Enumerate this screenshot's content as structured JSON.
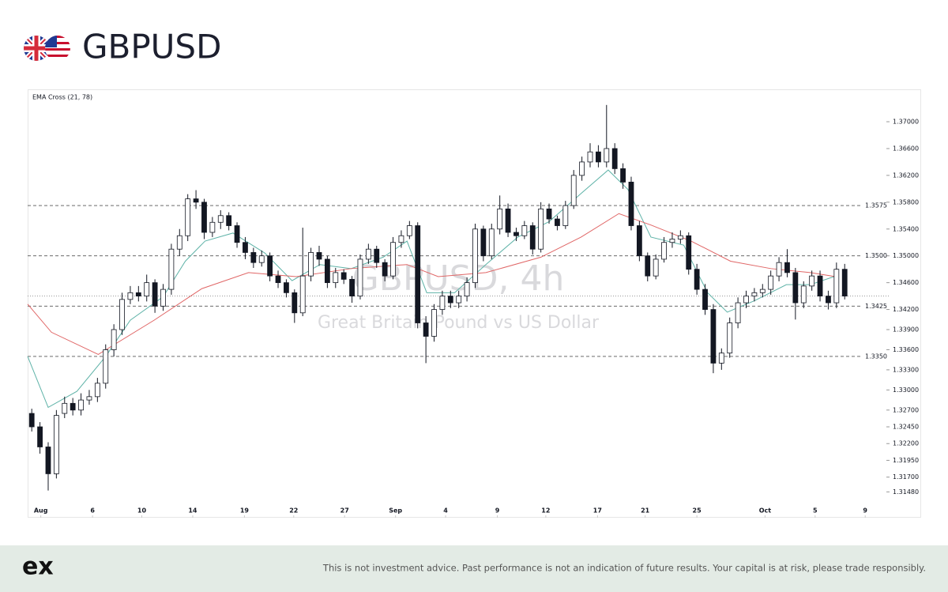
{
  "header": {
    "title": "GBPUSD"
  },
  "chart_data": {
    "type": "candlestick",
    "indicator_label": "EMA Cross (21, 78)",
    "watermark_title": "GBPUSD, 4h",
    "watermark_subtitle": "Great Britain Pound vs US Dollar",
    "up_color": "#ffffff",
    "down_color": "#131722",
    "xlim": [
      0,
      104
    ],
    "ylim": [
      1.3113,
      1.3746
    ],
    "xticks": [
      {
        "value": 1.6,
        "label": "Aug"
      },
      {
        "value": 7.9,
        "label": "6"
      },
      {
        "value": 13.9,
        "label": "10"
      },
      {
        "value": 20.1,
        "label": "14"
      },
      {
        "value": 26.4,
        "label": "19"
      },
      {
        "value": 32.4,
        "label": "22"
      },
      {
        "value": 38.6,
        "label": "27"
      },
      {
        "value": 44.8,
        "label": "Sep"
      },
      {
        "value": 50.9,
        "label": "4"
      },
      {
        "value": 57.2,
        "label": "9"
      },
      {
        "value": 63.1,
        "label": "12"
      },
      {
        "value": 69.4,
        "label": "17"
      },
      {
        "value": 75.2,
        "label": "21"
      },
      {
        "value": 81.5,
        "label": "25"
      },
      {
        "value": 89.8,
        "label": "Oct"
      },
      {
        "value": 95.9,
        "label": "5"
      },
      {
        "value": 102.0,
        "label": "9"
      }
    ],
    "yticks": [
      {
        "value": 1.37,
        "label": "1.37000"
      },
      {
        "value": 1.366,
        "label": "1.36600"
      },
      {
        "value": 1.362,
        "label": "1.36200"
      },
      {
        "value": 1.358,
        "label": "1.35800"
      },
      {
        "value": 1.354,
        "label": "1.35400"
      },
      {
        "value": 1.35,
        "label": "1.35000"
      },
      {
        "value": 1.346,
        "label": "1.34600"
      },
      {
        "value": 1.342,
        "label": "1.34200"
      },
      {
        "value": 1.339,
        "label": "1.33900"
      },
      {
        "value": 1.336,
        "label": "1.33600"
      },
      {
        "value": 1.333,
        "label": "1.33300"
      },
      {
        "value": 1.33,
        "label": "1.33000"
      },
      {
        "value": 1.327,
        "label": "1.32700"
      },
      {
        "value": 1.3245,
        "label": "1.32450"
      },
      {
        "value": 1.322,
        "label": "1.32200"
      },
      {
        "value": 1.3195,
        "label": "1.31950"
      },
      {
        "value": 1.317,
        "label": "1.31700"
      },
      {
        "value": 1.3148,
        "label": "1.31480"
      }
    ],
    "levels": [
      1.3575,
      {
        "value": 1.35,
        "label": "1.3500"
      },
      1.3425,
      {
        "value": 1.335,
        "label": "1.3350"
      }
    ],
    "open": [
      1.3265,
      1.3245,
      1.3215,
      1.3175,
      1.3265,
      1.328,
      1.327,
      1.3285,
      1.329,
      1.331,
      1.336,
      1.339,
      1.3435,
      1.3445,
      1.344,
      1.346,
      1.3425,
      1.345,
      1.351,
      1.353,
      1.3585,
      1.358,
      1.3535,
      1.355,
      1.356,
      1.3545,
      1.352,
      1.3505,
      1.349,
      1.35,
      1.347,
      1.346,
      1.3445,
      1.3415,
      1.347,
      1.3505,
      1.3495,
      1.346,
      1.3475,
      1.3465,
      1.344,
      1.3495,
      1.351,
      1.349,
      1.347,
      1.352,
      1.353,
      1.3545,
      1.34,
      1.338,
      1.342,
      1.344,
      1.343,
      1.344,
      1.346,
      1.354,
      1.35,
      1.354,
      1.357,
      1.3535,
      1.353,
      1.3545,
      1.351,
      1.357,
      1.3555,
      1.3545,
      1.3575,
      1.362,
      1.364,
      1.3655,
      1.364,
      1.366,
      1.363,
      1.361,
      1.3545,
      1.35,
      1.347,
      1.3495,
      1.352,
      1.3525,
      1.353,
      1.348,
      1.345,
      1.342,
      1.334,
      1.3355,
      1.34,
      1.343,
      1.344,
      1.3445,
      1.345,
      1.347,
      1.349,
      1.3475,
      1.343,
      1.3455,
      1.347,
      1.344,
      1.343,
      1.348
    ],
    "high": [
      1.3272,
      1.3252,
      1.3222,
      1.327,
      1.329,
      1.3288,
      1.3295,
      1.33,
      1.3318,
      1.3368,
      1.3398,
      1.3445,
      1.3455,
      1.3455,
      1.3472,
      1.3465,
      1.3458,
      1.3518,
      1.354,
      1.3592,
      1.3598,
      1.3585,
      1.3558,
      1.3568,
      1.3565,
      1.355,
      1.3528,
      1.3512,
      1.3508,
      1.3505,
      1.3478,
      1.3465,
      1.345,
      1.3542,
      1.3512,
      1.3515,
      1.35,
      1.3482,
      1.348,
      1.347,
      1.3502,
      1.3518,
      1.3515,
      1.3495,
      1.3528,
      1.3538,
      1.3552,
      1.355,
      1.341,
      1.3428,
      1.3448,
      1.3448,
      1.3448,
      1.3468,
      1.3548,
      1.3545,
      1.3548,
      1.359,
      1.3578,
      1.3542,
      1.3552,
      1.355,
      1.358,
      1.3578,
      1.356,
      1.3582,
      1.3628,
      1.3648,
      1.3668,
      1.3665,
      1.3725,
      1.3668,
      1.3638,
      1.3618,
      1.3552,
      1.3505,
      1.3502,
      1.3528,
      1.3535,
      1.3538,
      1.3535,
      1.3488,
      1.3458,
      1.3428,
      1.3362,
      1.3408,
      1.3438,
      1.3448,
      1.3452,
      1.3458,
      1.3478,
      1.3498,
      1.351,
      1.3482,
      1.3462,
      1.3478,
      1.3478,
      1.3448,
      1.349,
      1.3488
    ],
    "low": [
      1.3238,
      1.3205,
      1.315,
      1.3168,
      1.3258,
      1.3262,
      1.3262,
      1.3278,
      1.3282,
      1.3302,
      1.335,
      1.3382,
      1.3428,
      1.3432,
      1.3432,
      1.3415,
      1.3418,
      1.3442,
      1.35,
      1.3522,
      1.357,
      1.3525,
      1.3528,
      1.354,
      1.3538,
      1.3512,
      1.3495,
      1.3482,
      1.3484,
      1.3462,
      1.3452,
      1.3438,
      1.34,
      1.341,
      1.3462,
      1.3485,
      1.3452,
      1.3452,
      1.3458,
      1.343,
      1.3435,
      1.3488,
      1.3482,
      1.3462,
      1.3465,
      1.3512,
      1.3525,
      1.3392,
      1.334,
      1.3372,
      1.3412,
      1.3422,
      1.3422,
      1.3432,
      1.3452,
      1.3492,
      1.3495,
      1.3532,
      1.3528,
      1.3522,
      1.3525,
      1.3502,
      1.3505,
      1.3548,
      1.3538,
      1.354,
      1.357,
      1.3612,
      1.3632,
      1.3632,
      1.3632,
      1.3622,
      1.36,
      1.3538,
      1.3492,
      1.3462,
      1.3465,
      1.349,
      1.3512,
      1.3518,
      1.3472,
      1.3442,
      1.3412,
      1.3325,
      1.333,
      1.3348,
      1.3392,
      1.3422,
      1.3432,
      1.3438,
      1.3442,
      1.3462,
      1.3468,
      1.3405,
      1.3422,
      1.3448,
      1.3432,
      1.342,
      1.3422,
      1.3435
    ],
    "close": [
      1.3245,
      1.3215,
      1.3175,
      1.3262,
      1.328,
      1.327,
      1.3285,
      1.329,
      1.331,
      1.336,
      1.339,
      1.3435,
      1.3445,
      1.344,
      1.346,
      1.3425,
      1.345,
      1.351,
      1.353,
      1.3585,
      1.358,
      1.3535,
      1.355,
      1.356,
      1.3545,
      1.352,
      1.3505,
      1.349,
      1.35,
      1.347,
      1.346,
      1.3445,
      1.3415,
      1.347,
      1.3505,
      1.3495,
      1.346,
      1.3475,
      1.3465,
      1.344,
      1.3495,
      1.351,
      1.349,
      1.347,
      1.352,
      1.353,
      1.3545,
      1.34,
      1.338,
      1.342,
      1.344,
      1.343,
      1.344,
      1.346,
      1.354,
      1.35,
      1.354,
      1.357,
      1.3535,
      1.353,
      1.3545,
      1.351,
      1.357,
      1.3555,
      1.3545,
      1.3575,
      1.362,
      1.364,
      1.3655,
      1.364,
      1.366,
      1.363,
      1.361,
      1.3545,
      1.35,
      1.347,
      1.3495,
      1.352,
      1.3525,
      1.353,
      1.348,
      1.345,
      1.342,
      1.334,
      1.3355,
      1.34,
      1.343,
      1.344,
      1.3445,
      1.345,
      1.347,
      1.349,
      1.3475,
      1.343,
      1.3455,
      1.347,
      1.344,
      1.343,
      1.348,
      1.344
    ],
    "lines": [
      {
        "color": "#5fb3a8",
        "x": [
          0,
          2.5,
          6,
          9.5,
          12.5,
          16.5,
          19.2,
          21.6,
          25,
          28.9,
          32.2,
          35.6,
          39.4,
          43.3,
          46.2,
          48.6,
          52,
          55.8,
          59.7,
          63.5,
          67.4,
          70.7,
          73.1,
          75.9,
          79.9,
          82.8,
          85.2,
          88.5,
          92.4,
          95.3,
          98.2
        ],
        "values": [
          1.335,
          1.3274,
          1.3298,
          1.335,
          1.3404,
          1.3439,
          1.3492,
          1.3522,
          1.3534,
          1.3504,
          1.3463,
          1.3487,
          1.3481,
          1.3498,
          1.3522,
          1.3445,
          1.3445,
          1.3487,
          1.3528,
          1.3551,
          1.3593,
          1.3628,
          1.3599,
          1.3528,
          1.3516,
          1.3445,
          1.3416,
          1.3433,
          1.3457,
          1.3457,
          1.3469
        ]
      },
      {
        "color": "#e06666",
        "x": [
          0,
          2.9,
          8.6,
          15.4,
          21.2,
          26.9,
          32.7,
          39.4,
          46.2,
          50,
          55.8,
          62.5,
          67.4,
          72,
          75.9,
          80.8,
          85.6,
          90.5,
          95.3,
          98.4
        ],
        "values": [
          1.3428,
          1.3386,
          1.3353,
          1.3404,
          1.3451,
          1.3475,
          1.3469,
          1.3481,
          1.3487,
          1.3469,
          1.3475,
          1.3498,
          1.3528,
          1.3563,
          1.3546,
          1.3522,
          1.3492,
          1.3481,
          1.3475,
          1.3469
        ]
      }
    ]
  },
  "footer": {
    "logo": "ex",
    "disclaimer": "This is not investment advice. Past performance is not an indication of future results. Your capital is at risk, please trade responsibly."
  }
}
